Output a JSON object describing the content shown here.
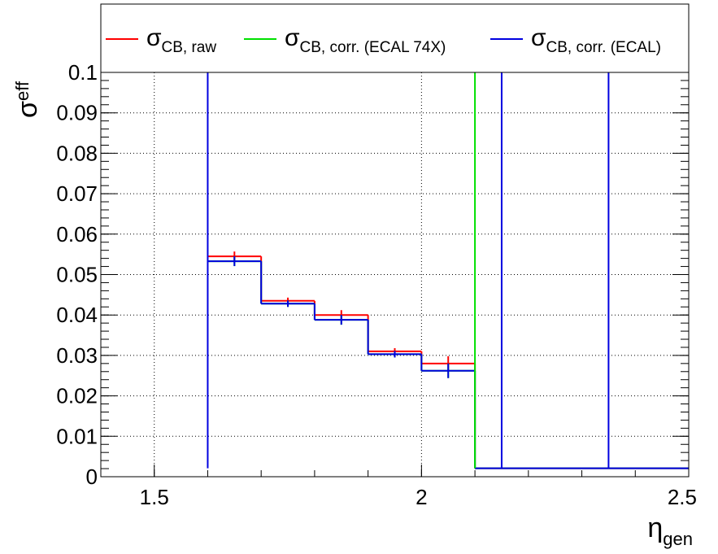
{
  "chart_data": {
    "type": "line",
    "xlabel": {
      "symbol": "η",
      "sub": "gen"
    },
    "ylabel": {
      "symbol": "σ",
      "sub": "eff"
    },
    "xlim": [
      1.4,
      2.5
    ],
    "ylim": [
      0,
      0.1
    ],
    "x_ticks": [
      "1.5",
      "2",
      "2.5"
    ],
    "y_ticks": [
      "0",
      "0.01",
      "0.02",
      "0.03",
      "0.04",
      "0.05",
      "0.06",
      "0.07",
      "0.08",
      "0.09",
      "0.1"
    ],
    "grid": true,
    "legend_position": "top",
    "series": [
      {
        "name": {
          "symbol": "σ",
          "sub": "CB, raw"
        },
        "color": "#ff0000",
        "bins": [
          {
            "x0": 1.6,
            "x1": 1.7,
            "y": 0.0545,
            "err": 0.0012
          },
          {
            "x0": 1.7,
            "x1": 1.8,
            "y": 0.0435,
            "err": 0.0008
          },
          {
            "x0": 1.8,
            "x1": 1.9,
            "y": 0.04,
            "err": 0.0012
          },
          {
            "x0": 1.9,
            "x1": 2.0,
            "y": 0.031,
            "err": 0.0008
          },
          {
            "x0": 2.0,
            "x1": 2.1,
            "y": 0.028,
            "err": 0.0018
          },
          {
            "x0": 2.1,
            "x1": 2.15,
            "y": 0.0021,
            "err": 0
          },
          {
            "x0": 2.15,
            "x1": 2.35,
            "y": 0.0021,
            "err": 0
          },
          {
            "x0": 2.35,
            "x1": 2.5,
            "y": 0.0021,
            "err": 0
          }
        ]
      },
      {
        "name": {
          "symbol": "σ",
          "sub": "CB, corr. (ECAL 74X)"
        },
        "color": "#00e000",
        "bins": [
          {
            "x0": 1.6,
            "x1": 1.7,
            "y": 0.0533,
            "err": 0.0012
          },
          {
            "x0": 1.7,
            "x1": 1.8,
            "y": 0.0428,
            "err": 0.0008
          },
          {
            "x0": 1.8,
            "x1": 1.9,
            "y": 0.0388,
            "err": 0.0012
          },
          {
            "x0": 1.9,
            "x1": 2.0,
            "y": 0.0303,
            "err": 0.0008
          },
          {
            "x0": 2.0,
            "x1": 2.1,
            "y": 0.0262,
            "err": 0.0018
          },
          {
            "x0": 2.1,
            "x1": 2.15,
            "y": 0.0021,
            "err": 0
          },
          {
            "x0": 2.15,
            "x1": 2.35,
            "y": 0.0021,
            "err": 0
          },
          {
            "x0": 2.35,
            "x1": 2.5,
            "y": 0.0021,
            "err": 0
          }
        ]
      },
      {
        "name": {
          "symbol": "σ",
          "sub": "CB, corr. (ECAL)"
        },
        "color": "#0000e0",
        "bins": [
          {
            "x0": 1.6,
            "x1": 1.7,
            "y": 0.0533,
            "err": 0.0012
          },
          {
            "x0": 1.7,
            "x1": 1.8,
            "y": 0.0428,
            "err": 0.0008
          },
          {
            "x0": 1.8,
            "x1": 1.9,
            "y": 0.0388,
            "err": 0.0012
          },
          {
            "x0": 1.9,
            "x1": 2.0,
            "y": 0.0303,
            "err": 0.0008
          },
          {
            "x0": 2.0,
            "x1": 2.1,
            "y": 0.0262,
            "err": 0.0018
          },
          {
            "x0": 2.1,
            "x1": 2.15,
            "y": 0.0021,
            "err": 0
          },
          {
            "x0": 2.15,
            "x1": 2.35,
            "y": 0.0021,
            "err": 0
          },
          {
            "x0": 2.35,
            "x1": 2.5,
            "y": 0.0021,
            "err": 0
          }
        ]
      }
    ],
    "off_scale_edges": [
      {
        "x": 1.6,
        "color": "#0000e0"
      },
      {
        "x": 2.1,
        "color": "#00e000"
      },
      {
        "x": 2.15,
        "color": "#0000e0"
      },
      {
        "x": 2.35,
        "color": "#0000e0"
      }
    ]
  }
}
